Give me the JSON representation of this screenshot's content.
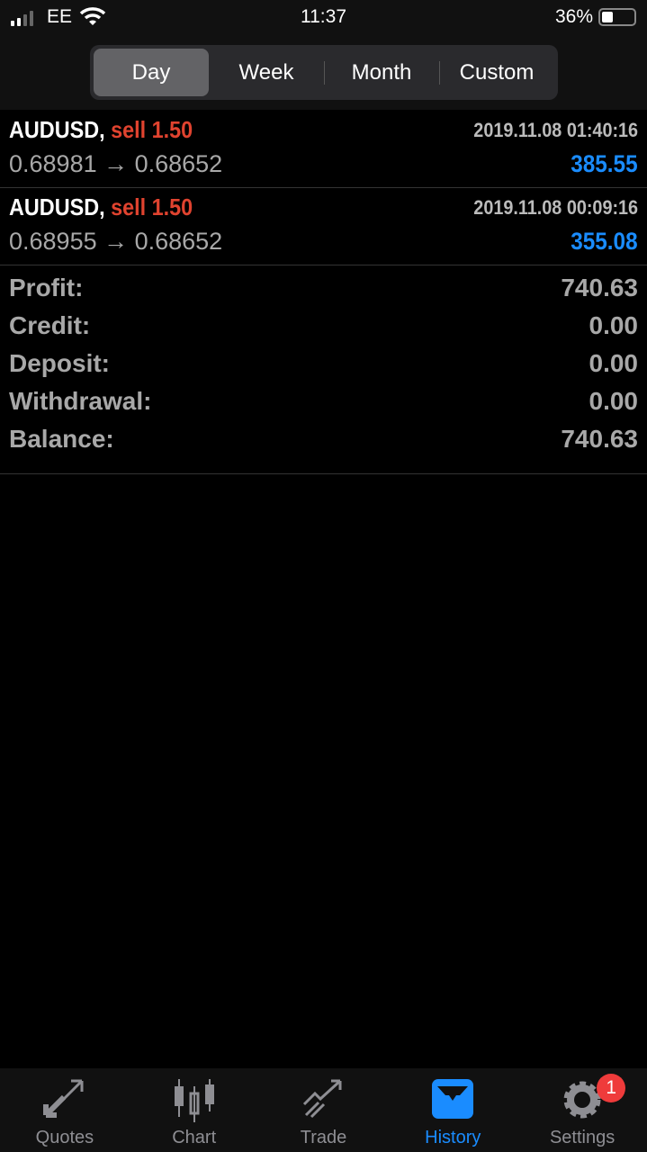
{
  "status": {
    "carrier": "EE",
    "time": "11:37",
    "battery": "36%",
    "battery_level": 0.36
  },
  "periods": {
    "items": [
      "Day",
      "Week",
      "Month",
      "Custom"
    ],
    "selected": "Day"
  },
  "deals": [
    {
      "symbol": "AUDUSD,",
      "type": "sell 1.50",
      "datetime": "2019.11.08 01:40:16",
      "prices": "0.68981 → 0.68652",
      "profit": "385.55"
    },
    {
      "symbol": "AUDUSD,",
      "type": "sell 1.50",
      "datetime": "2019.11.08 00:09:16",
      "prices": "0.68955 → 0.68652",
      "profit": "355.08"
    }
  ],
  "summary": [
    {
      "label": "Profit:",
      "value": "740.63"
    },
    {
      "label": "Credit:",
      "value": "0.00"
    },
    {
      "label": "Deposit:",
      "value": "0.00"
    },
    {
      "label": "Withdrawal:",
      "value": "0.00"
    },
    {
      "label": "Balance:",
      "value": "740.63"
    }
  ],
  "tabs": [
    {
      "label": "Quotes"
    },
    {
      "label": "Chart"
    },
    {
      "label": "Trade"
    },
    {
      "label": "History",
      "active": true
    },
    {
      "label": "Settings",
      "badge": "1"
    }
  ],
  "colors": {
    "accent": "#1a8cff",
    "sell": "#e0432f",
    "badge": "#ef3b3b"
  }
}
